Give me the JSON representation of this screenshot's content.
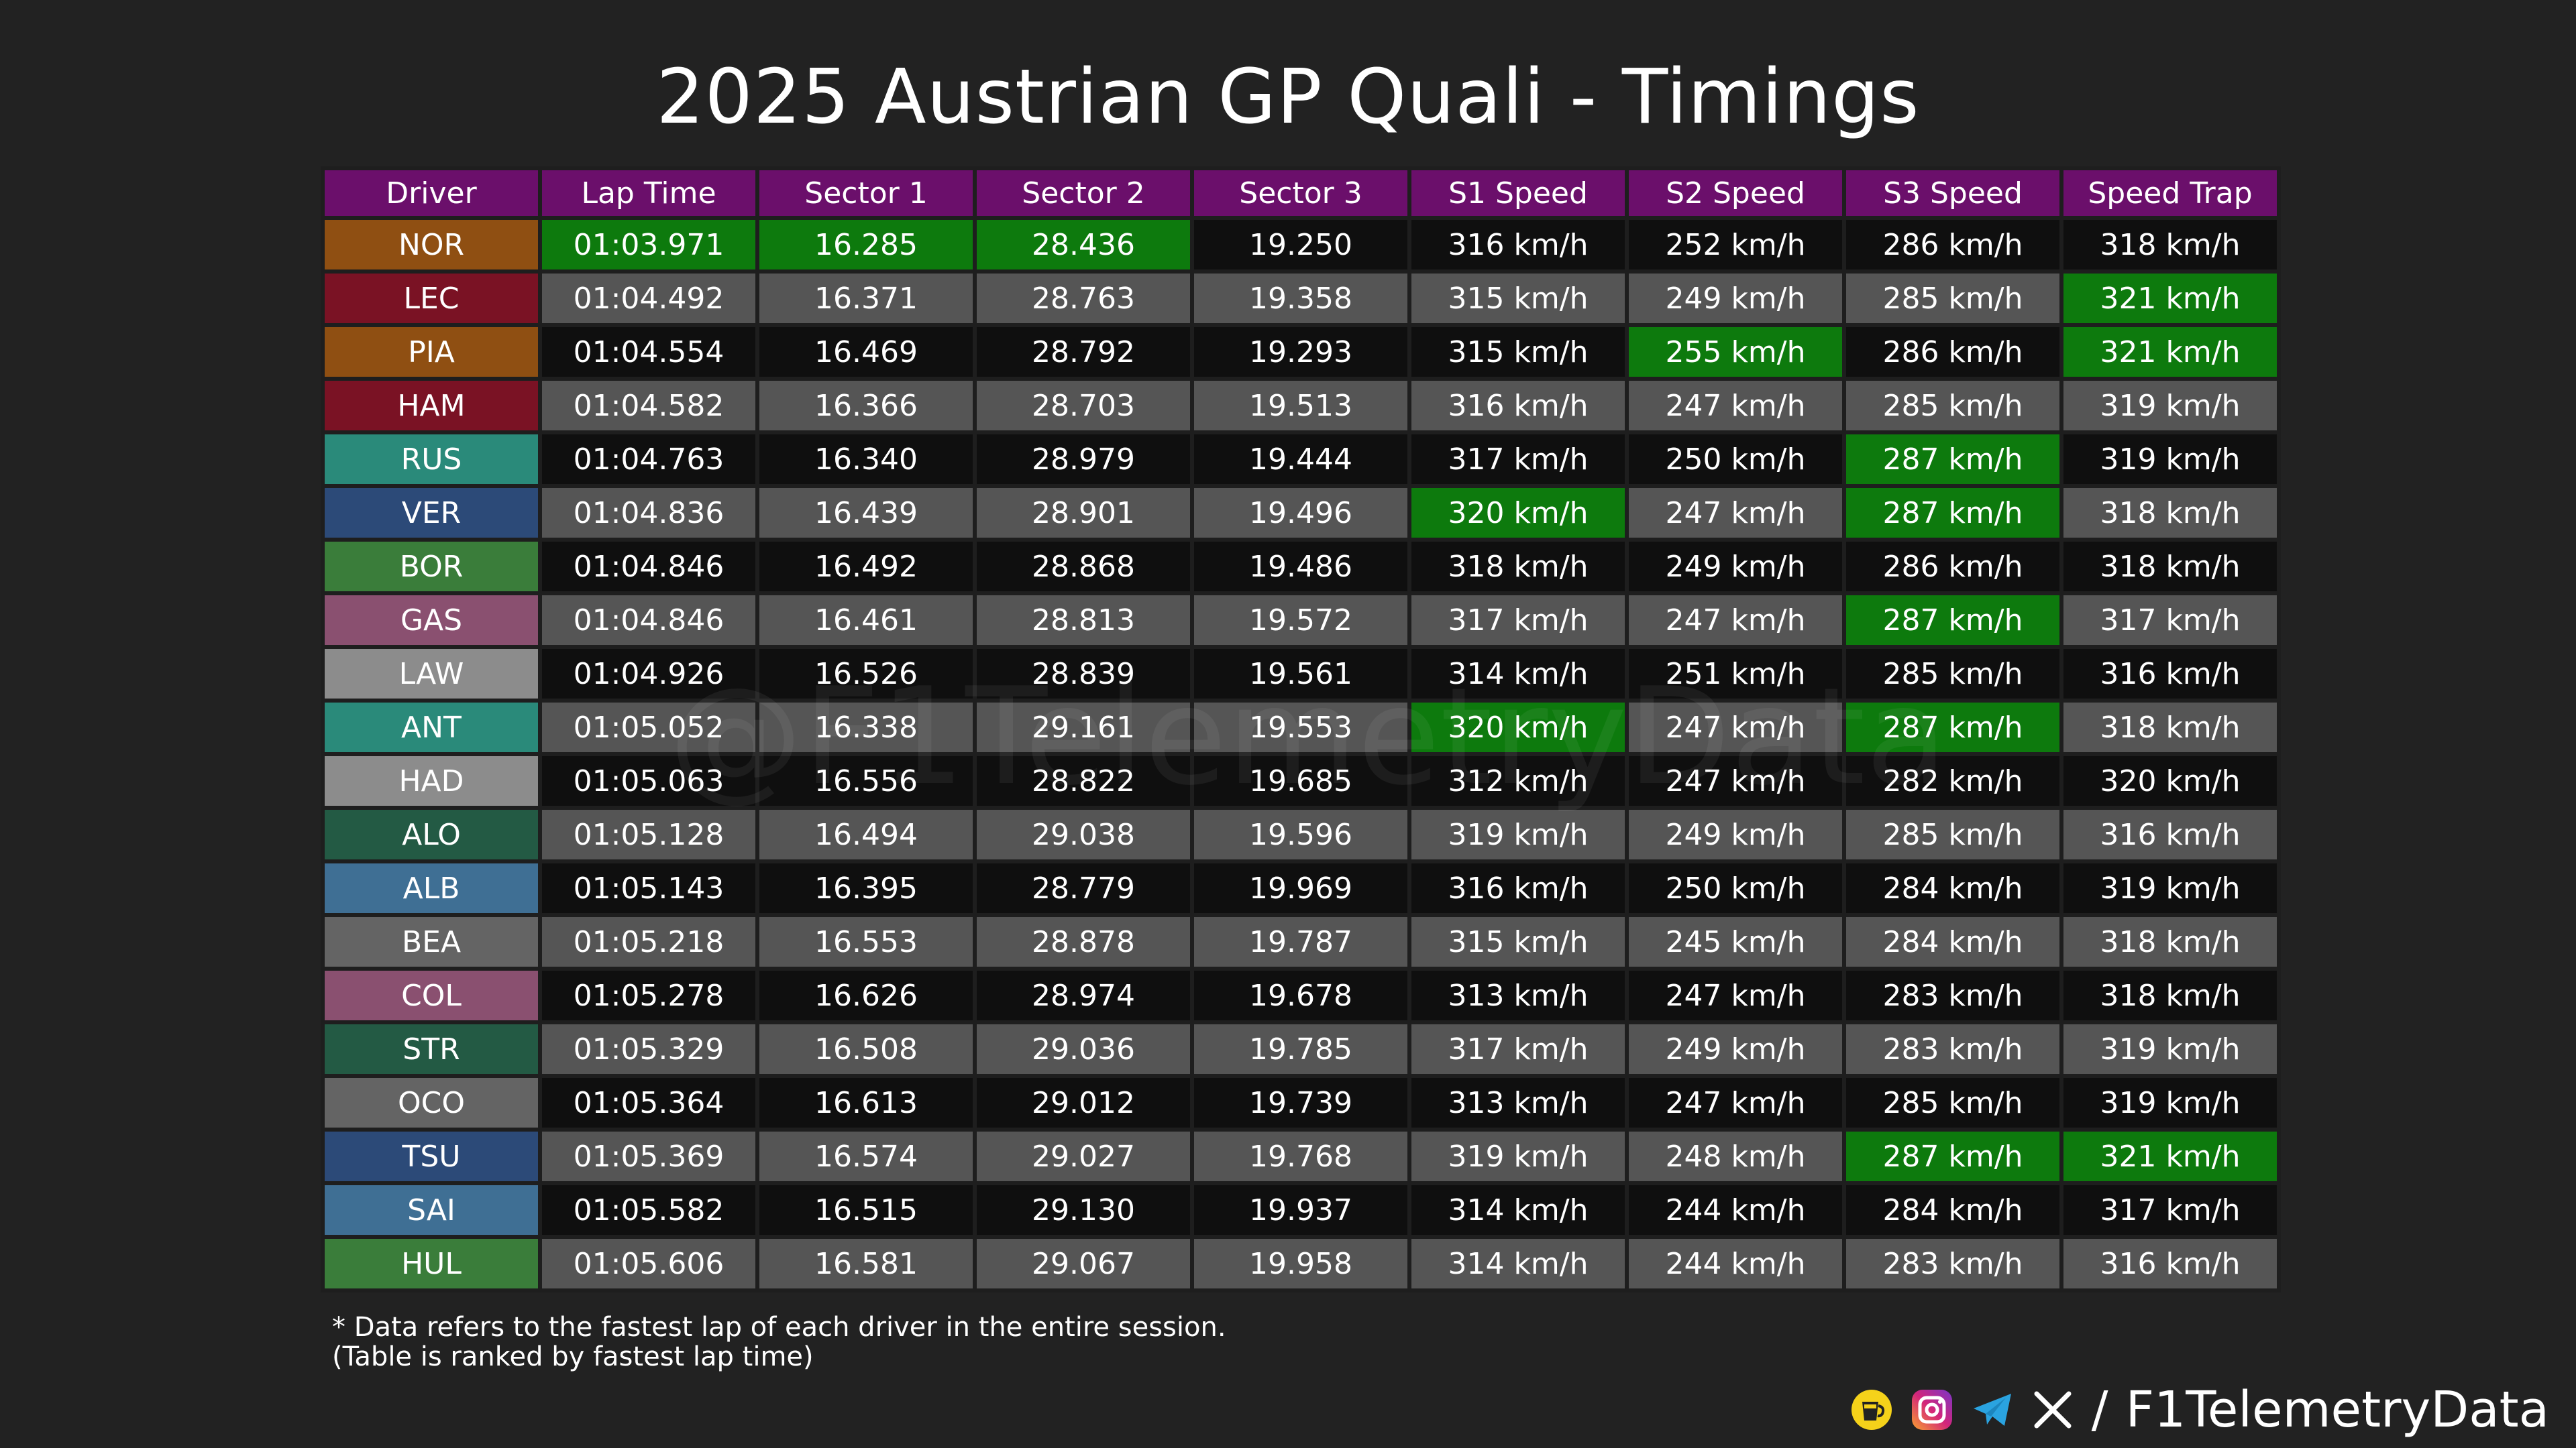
{
  "title": "2025 Austrian GP Quali - Timings",
  "watermark": "@F1TelemetryData",
  "colors": {
    "header": "#6b0f6b",
    "best": "#0d7a0d",
    "row_dark": "#0f0f0f",
    "row_light": "#555555",
    "background": "#222222"
  },
  "chart_data": {
    "type": "table",
    "title": "2025 Austrian GP Quali - Timings",
    "columns": [
      "Driver",
      "Lap Time",
      "Sector 1",
      "Sector 2",
      "Sector 3",
      "S1 Speed",
      "S2 Speed",
      "S3 Speed",
      "Speed Trap"
    ],
    "rows": [
      {
        "driver": "NOR",
        "team_color": "#8f4f12",
        "cells": [
          "01:03.971",
          "16.285",
          "28.436",
          "19.250",
          "316 km/h",
          "252 km/h",
          "286 km/h",
          "318 km/h"
        ],
        "best": [
          1,
          2,
          3
        ]
      },
      {
        "driver": "LEC",
        "team_color": "#7a1224",
        "cells": [
          "01:04.492",
          "16.371",
          "28.763",
          "19.358",
          "315 km/h",
          "249 km/h",
          "285 km/h",
          "321 km/h"
        ],
        "best": [
          8
        ]
      },
      {
        "driver": "PIA",
        "team_color": "#8f4f12",
        "cells": [
          "01:04.554",
          "16.469",
          "28.792",
          "19.293",
          "315 km/h",
          "255 km/h",
          "286 km/h",
          "321 km/h"
        ],
        "best": [
          6,
          8
        ]
      },
      {
        "driver": "HAM",
        "team_color": "#7a1224",
        "cells": [
          "01:04.582",
          "16.366",
          "28.703",
          "19.513",
          "316 km/h",
          "247 km/h",
          "285 km/h",
          "319 km/h"
        ],
        "best": []
      },
      {
        "driver": "RUS",
        "team_color": "#2a8a7a",
        "cells": [
          "01:04.763",
          "16.340",
          "28.979",
          "19.444",
          "317 km/h",
          "250 km/h",
          "287 km/h",
          "319 km/h"
        ],
        "best": [
          7
        ]
      },
      {
        "driver": "VER",
        "team_color": "#2c4a78",
        "cells": [
          "01:04.836",
          "16.439",
          "28.901",
          "19.496",
          "320 km/h",
          "247 km/h",
          "287 km/h",
          "318 km/h"
        ],
        "best": [
          5,
          7
        ]
      },
      {
        "driver": "BOR",
        "team_color": "#3a7d3a",
        "cells": [
          "01:04.846",
          "16.492",
          "28.868",
          "19.486",
          "318 km/h",
          "249 km/h",
          "286 km/h",
          "318 km/h"
        ],
        "best": []
      },
      {
        "driver": "GAS",
        "team_color": "#8a5070",
        "cells": [
          "01:04.846",
          "16.461",
          "28.813",
          "19.572",
          "317 km/h",
          "247 km/h",
          "287 km/h",
          "317 km/h"
        ],
        "best": [
          7
        ]
      },
      {
        "driver": "LAW",
        "team_color": "#8c8c8c",
        "cells": [
          "01:04.926",
          "16.526",
          "28.839",
          "19.561",
          "314 km/h",
          "251 km/h",
          "285 km/h",
          "316 km/h"
        ],
        "best": []
      },
      {
        "driver": "ANT",
        "team_color": "#2a8a7a",
        "cells": [
          "01:05.052",
          "16.338",
          "29.161",
          "19.553",
          "320 km/h",
          "247 km/h",
          "287 km/h",
          "318 km/h"
        ],
        "best": [
          5,
          7
        ]
      },
      {
        "driver": "HAD",
        "team_color": "#8c8c8c",
        "cells": [
          "01:05.063",
          "16.556",
          "28.822",
          "19.685",
          "312 km/h",
          "247 km/h",
          "282 km/h",
          "320 km/h"
        ],
        "best": []
      },
      {
        "driver": "ALO",
        "team_color": "#235a44",
        "cells": [
          "01:05.128",
          "16.494",
          "29.038",
          "19.596",
          "319 km/h",
          "249 km/h",
          "285 km/h",
          "316 km/h"
        ],
        "best": []
      },
      {
        "driver": "ALB",
        "team_color": "#3f6f94",
        "cells": [
          "01:05.143",
          "16.395",
          "28.779",
          "19.969",
          "316 km/h",
          "250 km/h",
          "284 km/h",
          "319 km/h"
        ],
        "best": []
      },
      {
        "driver": "BEA",
        "team_color": "#646464",
        "cells": [
          "01:05.218",
          "16.553",
          "28.878",
          "19.787",
          "315 km/h",
          "245 km/h",
          "284 km/h",
          "318 km/h"
        ],
        "best": []
      },
      {
        "driver": "COL",
        "team_color": "#8a5070",
        "cells": [
          "01:05.278",
          "16.626",
          "28.974",
          "19.678",
          "313 km/h",
          "247 km/h",
          "283 km/h",
          "318 km/h"
        ],
        "best": []
      },
      {
        "driver": "STR",
        "team_color": "#235a44",
        "cells": [
          "01:05.329",
          "16.508",
          "29.036",
          "19.785",
          "317 km/h",
          "249 km/h",
          "283 km/h",
          "319 km/h"
        ],
        "best": []
      },
      {
        "driver": "OCO",
        "team_color": "#646464",
        "cells": [
          "01:05.364",
          "16.613",
          "29.012",
          "19.739",
          "313 km/h",
          "247 km/h",
          "285 km/h",
          "319 km/h"
        ],
        "best": []
      },
      {
        "driver": "TSU",
        "team_color": "#2c4a78",
        "cells": [
          "01:05.369",
          "16.574",
          "29.027",
          "19.768",
          "319 km/h",
          "248 km/h",
          "287 km/h",
          "321 km/h"
        ],
        "best": [
          7,
          8
        ]
      },
      {
        "driver": "SAI",
        "team_color": "#3f6f94",
        "cells": [
          "01:05.582",
          "16.515",
          "29.130",
          "19.937",
          "314 km/h",
          "244 km/h",
          "284 km/h",
          "317 km/h"
        ],
        "best": []
      },
      {
        "driver": "HUL",
        "team_color": "#3a7d3a",
        "cells": [
          "01:05.606",
          "16.581",
          "29.067",
          "19.958",
          "314 km/h",
          "244 km/h",
          "283 km/h",
          "316 km/h"
        ],
        "best": []
      }
    ]
  },
  "footnote": {
    "line1": "* Data refers to the fastest lap of each driver in the entire session.",
    "line2": "(Table is ranked by fastest lap time)"
  },
  "branding": {
    "separator": "/",
    "handle": "F1TelemetryData",
    "icons": [
      "kofi-icon",
      "instagram-icon",
      "telegram-icon",
      "x-icon"
    ]
  }
}
